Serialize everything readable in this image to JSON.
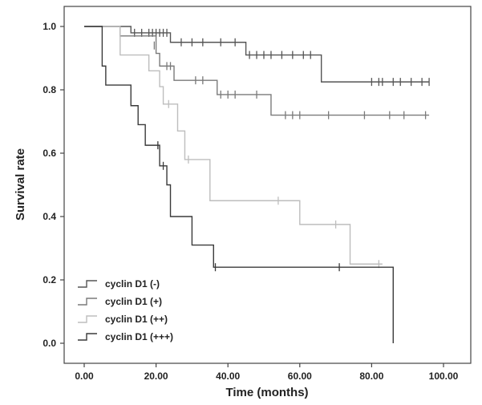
{
  "chart_data": {
    "type": "line",
    "subtype": "kaplan-meier-survival",
    "title": "",
    "xlabel": "Time (months)",
    "ylabel": "Survival rate",
    "xlim": [
      0,
      100
    ],
    "ylim": [
      0,
      1.0
    ],
    "x_ticks": [
      "0.00",
      "20.00",
      "40.00",
      "60.00",
      "80.00",
      "100.00"
    ],
    "x_tick_values": [
      0,
      20,
      40,
      60,
      80,
      100
    ],
    "y_ticks": [
      "0.0",
      "0.2",
      "0.4",
      "0.6",
      "0.8",
      "1.0"
    ],
    "y_tick_values": [
      0,
      0.2,
      0.4,
      0.6,
      0.8,
      1.0
    ],
    "grid": false,
    "legend_position": "bottom-left",
    "series": [
      {
        "name": "cyclin D1 (-)",
        "color": "#555555",
        "steps": [
          [
            0,
            1.0
          ],
          [
            13,
            0.98
          ],
          [
            24,
            0.95
          ],
          [
            45,
            0.91
          ],
          [
            66,
            0.825
          ],
          [
            96,
            0.825
          ]
        ],
        "censored": [
          [
            14,
            0.98
          ],
          [
            16,
            0.98
          ],
          [
            18,
            0.98
          ],
          [
            19,
            0.98
          ],
          [
            20,
            0.98
          ],
          [
            21,
            0.98
          ],
          [
            22,
            0.98
          ],
          [
            23,
            0.98
          ],
          [
            27,
            0.95
          ],
          [
            30,
            0.95
          ],
          [
            33,
            0.95
          ],
          [
            38,
            0.95
          ],
          [
            42,
            0.95
          ],
          [
            46,
            0.91
          ],
          [
            48,
            0.91
          ],
          [
            50,
            0.91
          ],
          [
            52,
            0.91
          ],
          [
            55,
            0.91
          ],
          [
            58,
            0.91
          ],
          [
            61,
            0.91
          ],
          [
            63,
            0.91
          ],
          [
            80,
            0.825
          ],
          [
            82,
            0.825
          ],
          [
            83,
            0.825
          ],
          [
            86,
            0.825
          ],
          [
            88,
            0.825
          ],
          [
            91,
            0.825
          ],
          [
            94,
            0.825
          ],
          [
            96,
            0.825
          ]
        ]
      },
      {
        "name": "cyclin D1 (+)",
        "color": "#7a7a7a",
        "steps": [
          [
            0,
            1.0
          ],
          [
            10,
            0.97
          ],
          [
            20,
            0.915
          ],
          [
            21,
            0.875
          ],
          [
            25,
            0.83
          ],
          [
            37,
            0.785
          ],
          [
            52,
            0.72
          ],
          [
            96,
            0.72
          ]
        ],
        "censored": [
          [
            19.5,
            0.94
          ],
          [
            23,
            0.875
          ],
          [
            24,
            0.875
          ],
          [
            31,
            0.83
          ],
          [
            33,
            0.83
          ],
          [
            38,
            0.785
          ],
          [
            40,
            0.785
          ],
          [
            42,
            0.785
          ],
          [
            48,
            0.785
          ],
          [
            56,
            0.72
          ],
          [
            58,
            0.72
          ],
          [
            60,
            0.72
          ],
          [
            68,
            0.72
          ],
          [
            78,
            0.72
          ],
          [
            85,
            0.72
          ],
          [
            89,
            0.72
          ],
          [
            95,
            0.72
          ]
        ]
      },
      {
        "name": "cyclin D1 (++)",
        "color": "#bdbdbd",
        "steps": [
          [
            0,
            1.0
          ],
          [
            10,
            0.91
          ],
          [
            18,
            0.86
          ],
          [
            21,
            0.81
          ],
          [
            22,
            0.755
          ],
          [
            26,
            0.67
          ],
          [
            28,
            0.58
          ],
          [
            35,
            0.45
          ],
          [
            60,
            0.375
          ],
          [
            74,
            0.25
          ],
          [
            83,
            0.25
          ]
        ],
        "censored": [
          [
            23.5,
            0.755
          ],
          [
            29,
            0.58
          ],
          [
            54,
            0.45
          ],
          [
            70,
            0.375
          ],
          [
            82,
            0.25
          ]
        ]
      },
      {
        "name": "cyclin D1 (+++)",
        "color": "#3a3a3a",
        "steps": [
          [
            0,
            1.0
          ],
          [
            5,
            0.875
          ],
          [
            6,
            0.815
          ],
          [
            13,
            0.75
          ],
          [
            15,
            0.69
          ],
          [
            17,
            0.625
          ],
          [
            21,
            0.56
          ],
          [
            23,
            0.5
          ],
          [
            24,
            0.4
          ],
          [
            30,
            0.31
          ],
          [
            36,
            0.24
          ],
          [
            86,
            0.24
          ],
          [
            86,
            0.0
          ]
        ],
        "censored": [
          [
            20.5,
            0.625
          ],
          [
            22,
            0.56
          ],
          [
            36.5,
            0.24
          ],
          [
            71,
            0.24
          ]
        ]
      }
    ]
  }
}
